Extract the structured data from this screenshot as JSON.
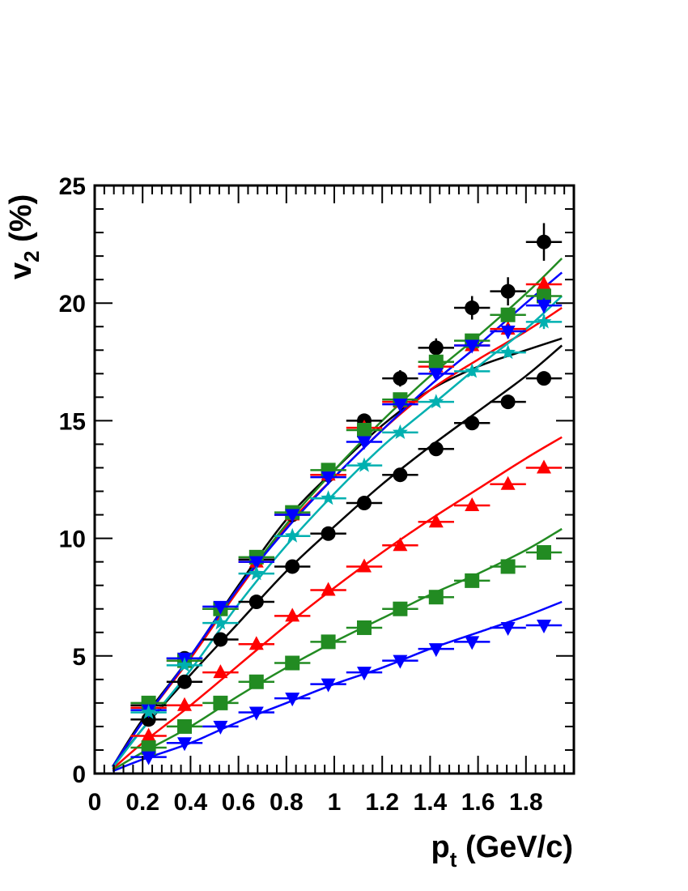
{
  "chart_data": {
    "type": "scatter",
    "title": "",
    "xlabel": "p",
    "xlabel_sub": "t",
    "xlabel_unit": " (GeV/c)",
    "ylabel": "v",
    "ylabel_sub": "2",
    "ylabel_unit": " (%)",
    "xlim": [
      0,
      2.0
    ],
    "ylim": [
      0,
      25
    ],
    "xticks": [
      {
        "value": 0,
        "label": "0"
      },
      {
        "value": 0.2,
        "label": "0.2"
      },
      {
        "value": 0.4,
        "label": "0.4"
      },
      {
        "value": 0.6,
        "label": "0.6"
      },
      {
        "value": 0.8,
        "label": "0.8"
      },
      {
        "value": 1.0,
        "label": "1"
      },
      {
        "value": 1.2,
        "label": "1.2"
      },
      {
        "value": 1.4,
        "label": "1.4"
      },
      {
        "value": 1.6,
        "label": "1.6"
      },
      {
        "value": 1.8,
        "label": "1.8"
      }
    ],
    "yticks": [
      {
        "value": 0,
        "label": "0"
      },
      {
        "value": 5,
        "label": "5"
      },
      {
        "value": 10,
        "label": "10"
      },
      {
        "value": 15,
        "label": "15"
      },
      {
        "value": 20,
        "label": "20"
      },
      {
        "value": 25,
        "label": "25"
      }
    ],
    "x": [
      0.225,
      0.375,
      0.525,
      0.675,
      0.825,
      0.975,
      1.125,
      1.275,
      1.425,
      1.575,
      1.725,
      1.875
    ],
    "xerr": 0.075,
    "series": [
      {
        "marker": "circle",
        "color": "#000000",
        "values": [
          2.3,
          3.9,
          5.7,
          7.3,
          8.8,
          10.2,
          11.5,
          12.7,
          13.8,
          14.9,
          15.8,
          16.8
        ]
      },
      {
        "marker": "triangle-up",
        "color": "#ff0000",
        "values": [
          1.6,
          2.9,
          4.3,
          5.5,
          6.7,
          7.8,
          8.8,
          9.7,
          10.7,
          11.4,
          12.3,
          13.0
        ]
      },
      {
        "marker": "square",
        "color": "#228b22",
        "values": [
          1.1,
          2.0,
          3.0,
          3.9,
          4.7,
          5.6,
          6.2,
          7.0,
          7.5,
          8.2,
          8.8,
          9.4
        ]
      },
      {
        "marker": "triangle-down",
        "color": "#0000ff",
        "values": [
          0.7,
          1.3,
          2.0,
          2.6,
          3.2,
          3.8,
          4.3,
          4.8,
          5.3,
          5.6,
          6.2,
          6.3
        ]
      },
      {
        "marker": "circle",
        "color": "#000000",
        "values": [
          2.9,
          4.9,
          7.0,
          9.1,
          11.0,
          12.7,
          15.0,
          16.8,
          18.1,
          19.8,
          20.5,
          22.6
        ],
        "yerr": [
          0.2,
          0.2,
          0.2,
          0.2,
          0.2,
          0.25,
          0.3,
          0.35,
          0.4,
          0.5,
          0.6,
          0.8
        ]
      },
      {
        "marker": "triangle-up",
        "color": "#ff0000",
        "values": [
          2.8,
          4.8,
          7.0,
          9.0,
          11.0,
          12.7,
          14.7,
          15.8,
          17.3,
          18.2,
          18.9,
          20.8
        ],
        "yerr": [
          0.1,
          0.1,
          0.1,
          0.1,
          0.1,
          0.1,
          0.15,
          0.2,
          0.2,
          0.2,
          0.3,
          0.3
        ]
      },
      {
        "marker": "square",
        "color": "#228b22",
        "values": [
          3.0,
          4.8,
          7.0,
          9.2,
          11.1,
          12.9,
          14.6,
          15.9,
          17.5,
          18.4,
          19.5,
          20.3
        ],
        "yerr": [
          0.1,
          0.1,
          0.1,
          0.1,
          0.1,
          0.1,
          0.15,
          0.2,
          0.2,
          0.2,
          0.3,
          0.3
        ]
      },
      {
        "marker": "triangle-down",
        "color": "#0000ff",
        "values": [
          2.7,
          4.9,
          7.1,
          9.0,
          11.0,
          12.6,
          14.1,
          15.7,
          17.0,
          18.2,
          18.8,
          19.9
        ],
        "yerr": [
          0.1,
          0.1,
          0.1,
          0.1,
          0.1,
          0.1,
          0.15,
          0.2,
          0.2,
          0.2,
          0.3,
          0.3
        ]
      },
      {
        "marker": "star",
        "color": "#00b0b0",
        "values": [
          2.6,
          4.6,
          6.4,
          8.5,
          10.1,
          11.7,
          13.1,
          14.5,
          15.8,
          17.1,
          17.9,
          19.2
        ],
        "yerr": [
          0.1,
          0.1,
          0.1,
          0.1,
          0.1,
          0.1,
          0.1,
          0.15,
          0.15,
          0.2,
          0.2,
          0.3
        ]
      }
    ],
    "curves": [
      {
        "color": "#000000",
        "x": [
          0.075,
          0.2,
          0.4,
          0.6,
          0.8,
          1.0,
          1.2,
          1.4,
          1.6,
          1.8,
          1.95
        ],
        "y": [
          0.3,
          1.9,
          4.2,
          6.4,
          8.6,
          10.5,
          12.3,
          13.9,
          15.4,
          16.9,
          18.2
        ]
      },
      {
        "color": "#ff0000",
        "x": [
          0.075,
          0.2,
          0.4,
          0.6,
          0.8,
          1.0,
          1.2,
          1.4,
          1.6,
          1.8,
          1.95
        ],
        "y": [
          0.2,
          1.3,
          2.9,
          4.6,
          6.3,
          7.9,
          9.4,
          10.8,
          12.1,
          13.4,
          14.3
        ]
      },
      {
        "color": "#228b22",
        "x": [
          0.075,
          0.2,
          0.4,
          0.6,
          0.8,
          1.0,
          1.2,
          1.4,
          1.6,
          1.8,
          1.95
        ],
        "y": [
          0.15,
          0.9,
          2.0,
          3.3,
          4.5,
          5.6,
          6.6,
          7.6,
          8.5,
          9.5,
          10.4
        ]
      },
      {
        "color": "#0000ff",
        "x": [
          0.075,
          0.2,
          0.4,
          0.6,
          0.8,
          1.0,
          1.2,
          1.4,
          1.6,
          1.8,
          1.95
        ],
        "y": [
          0.1,
          0.6,
          1.3,
          2.2,
          3.0,
          3.8,
          4.5,
          5.3,
          6.0,
          6.7,
          7.3
        ]
      },
      {
        "color": "#000000",
        "x": [
          0.075,
          0.2,
          0.4,
          0.6,
          0.8,
          1.0,
          1.2,
          1.4,
          1.6,
          1.8,
          1.95
        ],
        "y": [
          0.3,
          2.3,
          5.0,
          8.0,
          10.8,
          12.9,
          14.8,
          16.3,
          17.3,
          18.0,
          18.5
        ]
      },
      {
        "color": "#ff0000",
        "x": [
          0.075,
          0.2,
          0.4,
          0.6,
          0.8,
          1.0,
          1.2,
          1.4,
          1.6,
          1.8,
          1.95
        ],
        "y": [
          0.3,
          2.2,
          4.9,
          7.8,
          10.5,
          12.6,
          14.6,
          16.3,
          17.6,
          18.8,
          19.8
        ]
      },
      {
        "color": "#228b22",
        "x": [
          0.075,
          0.2,
          0.4,
          0.6,
          0.8,
          1.0,
          1.2,
          1.4,
          1.6,
          1.8,
          1.95
        ],
        "y": [
          0.3,
          2.2,
          5.0,
          7.9,
          10.6,
          12.9,
          15.0,
          16.9,
          18.6,
          20.4,
          21.9
        ]
      },
      {
        "color": "#0000ff",
        "x": [
          0.075,
          0.2,
          0.4,
          0.6,
          0.8,
          1.0,
          1.2,
          1.4,
          1.6,
          1.8,
          1.95
        ],
        "y": [
          0.3,
          2.2,
          5.0,
          7.9,
          10.4,
          12.6,
          14.6,
          16.5,
          18.2,
          20.0,
          21.3
        ]
      },
      {
        "color": "#00b0b0",
        "x": [
          0.075,
          0.2,
          0.4,
          0.6,
          0.8,
          1.0,
          1.2,
          1.4,
          1.6,
          1.8,
          1.95
        ],
        "y": [
          0.25,
          1.9,
          4.4,
          7.2,
          9.7,
          11.9,
          13.9,
          15.6,
          17.3,
          18.9,
          20.3
        ]
      }
    ]
  }
}
